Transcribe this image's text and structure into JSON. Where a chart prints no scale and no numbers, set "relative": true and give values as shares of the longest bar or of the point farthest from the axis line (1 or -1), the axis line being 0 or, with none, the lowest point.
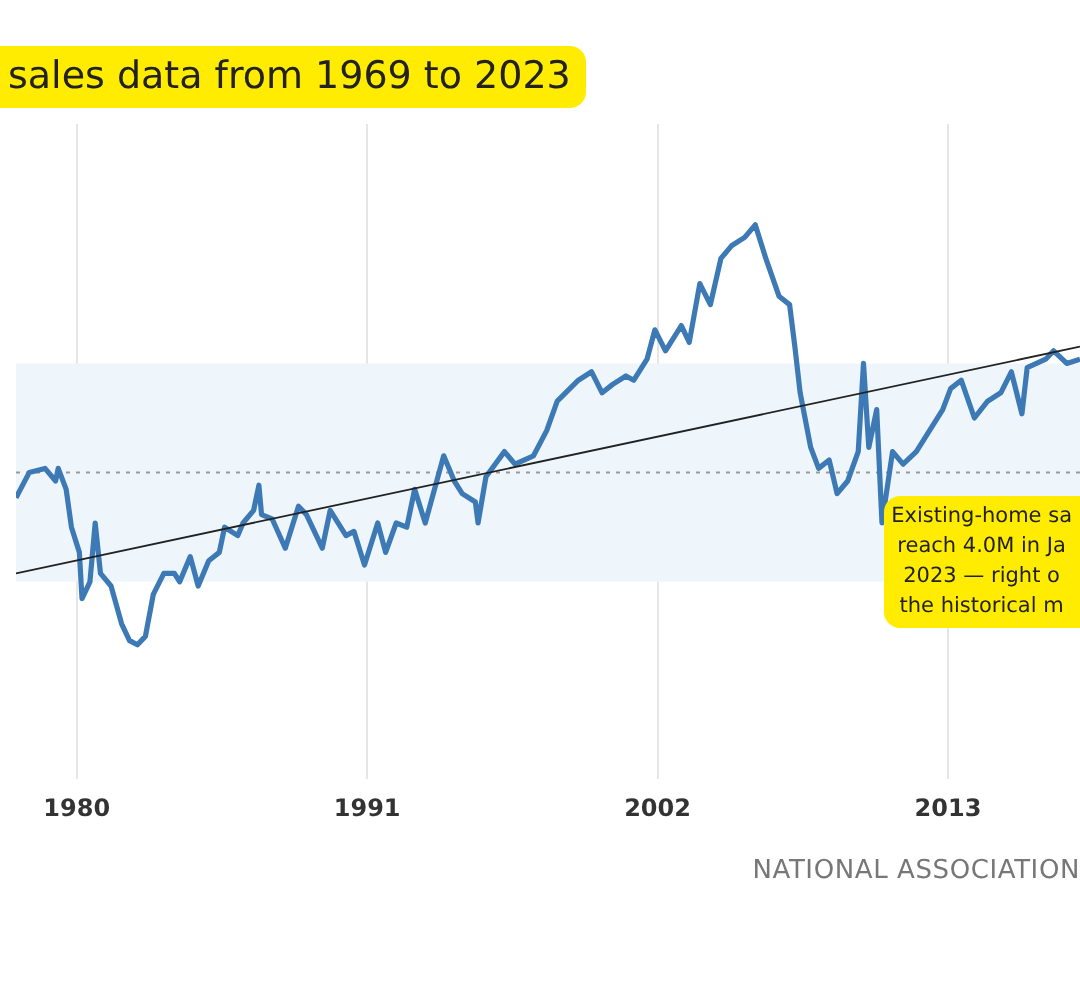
{
  "chart_data": {
    "type": "line",
    "title": "sales data from 1969 to 2023",
    "relative": true,
    "xlim": [
      1977.7,
      2018
    ],
    "xticks": [
      1980,
      1991,
      2002,
      2013
    ],
    "grid": "x",
    "legend": false,
    "marker": "none",
    "line_style": "solid",
    "annotations": [
      "Existing-home sa\nreach 4.0M in Ja\n2023 — right o\nthe historical m",
      "NATIONAL ASSOCIATION"
    ],
    "ref_lines": [
      {
        "axis": "y",
        "value": 0.41,
        "color": "#999999",
        "line_style": "dotted"
      }
    ],
    "bands": [
      {
        "axis": "y",
        "from": 0.15,
        "to": 0.67,
        "color": "#eef6fc"
      }
    ],
    "series": [
      {
        "color": "#3d7ab5",
        "x": [
          1977.7,
          1978.2,
          1978.8,
          1979.2,
          1979.3,
          1979.6,
          1979.8,
          1980.1,
          1980.2,
          1980.5,
          1980.7,
          1980.9,
          1981.3,
          1981.7,
          1982.0,
          1982.3,
          1982.6,
          1982.9,
          1983.3,
          1983.7,
          1983.9,
          1984.3,
          1984.6,
          1985.0,
          1985.4,
          1985.6,
          1986.1,
          1986.3,
          1986.7,
          1986.9,
          1987.0,
          1987.4,
          1987.9,
          1988.4,
          1988.7,
          1989.3,
          1989.6,
          1990.2,
          1990.5,
          1990.9,
          1991.4,
          1991.7,
          1992.1,
          1992.5,
          1992.8,
          1993.2,
          1993.9,
          1994.3,
          1994.6,
          1995.1,
          1995.2,
          1995.5,
          1996.2,
          1996.6,
          1997.3,
          1997.8,
          1998.2,
          1999.0,
          1999.5,
          1999.9,
          2000.3,
          2000.8,
          2001.1,
          2001.6,
          2001.9,
          2002.3,
          2002.9,
          2003.2,
          2003.6,
          2004.0,
          2004.4,
          2004.8,
          2005.3,
          2005.7,
          2006.1,
          2006.6,
          2007.0,
          2007.2,
          2007.4,
          2007.8,
          2008.1,
          2008.5,
          2008.8,
          2009.2,
          2009.6,
          2009.8,
          2010.0,
          2010.3,
          2010.5,
          2010.9,
          2011.3,
          2011.8,
          2012.3,
          2012.8,
          2013.1,
          2013.5,
          2014.0,
          2014.5,
          2015.0,
          2015.4,
          2015.8,
          2016.0,
          2016.7,
          2017.0,
          2017.5,
          2018.0
        ],
        "values": [
          0.35,
          0.41,
          0.42,
          0.39,
          0.42,
          0.37,
          0.28,
          0.22,
          0.11,
          0.15,
          0.29,
          0.17,
          0.14,
          0.05,
          0.01,
          0,
          0.02,
          0.12,
          0.17,
          0.17,
          0.15,
          0.21,
          0.14,
          0.2,
          0.22,
          0.28,
          0.26,
          0.29,
          0.32,
          0.38,
          0.31,
          0.3,
          0.23,
          0.33,
          0.31,
          0.23,
          0.32,
          0.26,
          0.27,
          0.19,
          0.29,
          0.22,
          0.29,
          0.28,
          0.37,
          0.29,
          0.45,
          0.39,
          0.36,
          0.34,
          0.29,
          0.4,
          0.46,
          0.43,
          0.45,
          0.51,
          0.58,
          0.63,
          0.65,
          0.6,
          0.62,
          0.64,
          0.63,
          0.68,
          0.75,
          0.7,
          0.76,
          0.72,
          0.86,
          0.81,
          0.92,
          0.95,
          0.97,
          1.0,
          0.92,
          0.83,
          0.81,
          0.71,
          0.6,
          0.47,
          0.42,
          0.44,
          0.36,
          0.39,
          0.46,
          0.67,
          0.47,
          0.56,
          0.29,
          0.46,
          0.43,
          0.46,
          0.51,
          0.56,
          0.61,
          0.63,
          0.54,
          0.58,
          0.6,
          0.65,
          0.55,
          0.66,
          0.68,
          0.7,
          0.67,
          0.68
        ]
      },
      {
        "type": "line",
        "color": "#222222",
        "x": [
          1977.7,
          2018
        ],
        "values": [
          0.17,
          0.71
        ]
      }
    ]
  }
}
